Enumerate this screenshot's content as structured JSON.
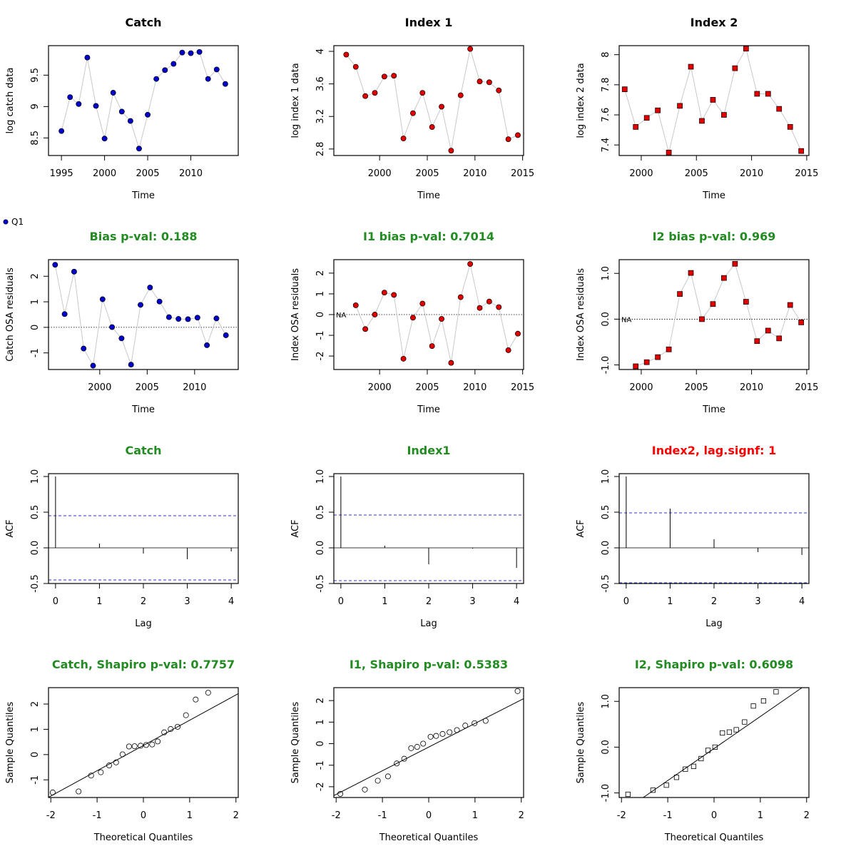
{
  "legend": {
    "label": "Q1",
    "color": "#0000cc"
  },
  "chart_data": [
    {
      "id": "p11",
      "type": "line",
      "title": "Catch",
      "title_color": "#000000",
      "xlabel": "Time",
      "ylabel": "log catch data",
      "xlim": [
        1993.5,
        2015.5
      ],
      "ylim": [
        8.22,
        9.97
      ],
      "xticks": [
        1995,
        2000,
        2005,
        2010
      ],
      "yticks": [
        8.5,
        9.0,
        9.5
      ],
      "marker": "circle",
      "marker_color": "#0000cc",
      "x": [
        1995,
        1996,
        1997,
        1998,
        1999,
        2000,
        2001,
        2002,
        2003,
        2004,
        2005,
        2006,
        2007,
        2008,
        2009,
        2010,
        2011,
        2012,
        2013,
        2014
      ],
      "y": [
        8.61,
        9.15,
        9.04,
        9.78,
        9.01,
        8.49,
        9.22,
        8.92,
        8.77,
        8.33,
        8.87,
        9.44,
        9.58,
        9.68,
        9.86,
        9.85,
        9.87,
        9.44,
        9.59,
        9.36
      ]
    },
    {
      "id": "p12",
      "type": "line",
      "title": "Index 1",
      "title_color": "#000000",
      "xlabel": "Time",
      "ylabel": "log index 1 data",
      "xlim": [
        1995.2,
        2015.1
      ],
      "ylim": [
        2.72,
        4.07
      ],
      "xticks": [
        2000,
        2005,
        2010,
        2015
      ],
      "yticks": [
        2.8,
        3.2,
        3.6,
        4.0
      ],
      "marker": "circle",
      "marker_color": "#e00000",
      "x": [
        1996.5,
        1997.5,
        1998.5,
        1999.5,
        2000.5,
        2001.5,
        2002.5,
        2003.5,
        2004.5,
        2005.5,
        2006.5,
        2007.5,
        2008.5,
        2009.5,
        2010.5,
        2011.5,
        2012.5,
        2013.5,
        2014.5
      ],
      "y": [
        3.96,
        3.81,
        3.45,
        3.49,
        3.69,
        3.7,
        2.93,
        3.24,
        3.49,
        3.07,
        3.32,
        2.78,
        3.46,
        4.03,
        3.63,
        3.62,
        3.52,
        2.92,
        2.97
      ]
    },
    {
      "id": "p13",
      "type": "line",
      "title": "Index 2",
      "title_color": "#000000",
      "xlabel": "Time",
      "ylabel": "log index 2 data",
      "xlim": [
        1998.0,
        2015.2
      ],
      "ylim": [
        7.33,
        8.06
      ],
      "xticks": [
        2000,
        2005,
        2010,
        2015
      ],
      "yticks": [
        7.4,
        7.6,
        7.8,
        8.0
      ],
      "marker": "square",
      "marker_color": "#e00000",
      "x": [
        1998.5,
        1999.5,
        2000.5,
        2001.5,
        2002.5,
        2003.5,
        2004.5,
        2005.5,
        2006.5,
        2007.5,
        2008.5,
        2009.5,
        2010.5,
        2011.5,
        2012.5,
        2013.5,
        2014.5
      ],
      "y": [
        7.77,
        7.52,
        7.58,
        7.63,
        7.35,
        7.66,
        7.92,
        7.56,
        7.7,
        7.6,
        7.91,
        8.04,
        7.74,
        7.74,
        7.64,
        7.52,
        7.36
      ]
    },
    {
      "id": "p21",
      "type": "line",
      "title": "Bias p-val: 0.188",
      "title_color": "#228b22",
      "xlabel": "Time",
      "ylabel": "Catch OSA residuals",
      "xlim": [
        1994.6,
        2014.6
      ],
      "ylim": [
        -1.65,
        2.65
      ],
      "xticks": [
        2000,
        2005,
        2010
      ],
      "yticks": [
        -1,
        0,
        1,
        2
      ],
      "hline": 0,
      "marker": "circle",
      "marker_color": "#0000cc",
      "x": [
        1995.3,
        1996.3,
        1997.3,
        1998.3,
        1999.3,
        2000.3,
        2001.3,
        2002.3,
        2003.3,
        2004.3,
        2005.3,
        2006.3,
        2007.3,
        2008.3,
        2009.3,
        2010.3,
        2011.3,
        2012.3,
        2013.3,
        2014.3
      ],
      "y": [
        2.45,
        0.52,
        2.18,
        -0.83,
        -1.5,
        1.1,
        0.01,
        -0.43,
        -1.46,
        0.88,
        1.56,
        1.01,
        0.4,
        0.33,
        0.32,
        0.38,
        -0.7,
        0.35,
        -0.31,
        null
      ]
    },
    {
      "id": "p22",
      "type": "line",
      "title": "I1 bias p-val: 0.7014",
      "title_color": "#228b22",
      "xlabel": "Time",
      "ylabel": "Index OSA residuals",
      "xlim": [
        1995.2,
        2015.1
      ],
      "ylim": [
        -2.65,
        2.65
      ],
      "xticks": [
        2000,
        2005,
        2010,
        2015
      ],
      "yticks": [
        -2,
        -1,
        0,
        1,
        2
      ],
      "hline": 0,
      "na_label": "NA",
      "marker": "circle",
      "marker_color": "#e00000",
      "x": [
        1997.5,
        1998.5,
        1999.5,
        2000.5,
        2001.5,
        2002.5,
        2003.5,
        2004.5,
        2005.5,
        2006.5,
        2007.5,
        2008.5,
        2009.5,
        2010.5,
        2011.5,
        2012.5,
        2013.5,
        2014.5
      ],
      "y": [
        0.45,
        -0.7,
        0.0,
        1.06,
        0.95,
        -2.13,
        -0.15,
        0.53,
        -1.52,
        -0.21,
        -2.33,
        0.84,
        2.44,
        0.32,
        0.63,
        0.36,
        -1.72,
        -0.92
      ]
    },
    {
      "id": "p23",
      "type": "line",
      "title": "I2 bias p-val: 0.969",
      "title_color": "#228b22",
      "xlabel": "Time",
      "ylabel": "Index OSA residuals",
      "xlim": [
        1998.0,
        2015.2
      ],
      "ylim": [
        -1.1,
        1.3
      ],
      "xticks": [
        2000,
        2005,
        2010,
        2015
      ],
      "yticks": [
        -1.0,
        0.0,
        1.0
      ],
      "ytick_labels": [
        "-1.0",
        "0.0",
        "1.0"
      ],
      "hline": 0,
      "na_label": "NA",
      "marker": "square",
      "marker_color": "#e00000",
      "x": [
        1999.5,
        2000.5,
        2001.5,
        2002.5,
        2003.5,
        2004.5,
        2005.5,
        2006.5,
        2007.5,
        2008.5,
        2009.5,
        2010.5,
        2011.5,
        2012.5,
        2013.5,
        2014.5
      ],
      "y": [
        -1.03,
        -0.94,
        -0.83,
        -0.66,
        0.55,
        1.01,
        0.0,
        0.33,
        0.9,
        1.21,
        0.38,
        -0.48,
        -0.25,
        -0.42,
        0.31,
        -0.07
      ]
    },
    {
      "id": "p31",
      "type": "bar",
      "title": "Catch",
      "title_color": "#228b22",
      "xlabel": "Lag",
      "ylabel": "ACF",
      "xlim": [
        -0.16,
        4.16
      ],
      "ylim": [
        -0.5,
        1.04
      ],
      "xticks": [
        0,
        1,
        2,
        3,
        4
      ],
      "yticks": [
        -0.5,
        0.0,
        0.5,
        1.0
      ],
      "ytick_labels": [
        "-0.5",
        "0.0",
        "0.5",
        "1.0"
      ],
      "hline": 0,
      "ci": [
        0.45,
        -0.45
      ],
      "ci_color": "#3333cc",
      "x": [
        0,
        1,
        2,
        3,
        4
      ],
      "y": [
        1.0,
        0.06,
        -0.08,
        -0.16,
        -0.05
      ]
    },
    {
      "id": "p32",
      "type": "bar",
      "title": "Index1",
      "title_color": "#228b22",
      "xlabel": "Lag",
      "ylabel": "ACF",
      "xlim": [
        -0.16,
        4.16
      ],
      "ylim": [
        -0.5,
        1.04
      ],
      "xticks": [
        0,
        1,
        2,
        3,
        4
      ],
      "yticks": [
        -0.5,
        0.0,
        0.5,
        1.0
      ],
      "ytick_labels": [
        "-0.5",
        "0.0",
        "0.5",
        "1.0"
      ],
      "hline": 0,
      "ci": [
        0.46,
        -0.46
      ],
      "ci_color": "#3333cc",
      "x": [
        0,
        1,
        2,
        3,
        4
      ],
      "y": [
        1.0,
        0.03,
        -0.23,
        -0.01,
        -0.28
      ]
    },
    {
      "id": "p33",
      "type": "bar",
      "title": "Index2, lag.signf: 1",
      "title_color": "#ff0000",
      "xlabel": "Lag",
      "ylabel": "ACF",
      "xlim": [
        -0.16,
        4.16
      ],
      "ylim": [
        -0.5,
        1.04
      ],
      "xticks": [
        0,
        1,
        2,
        3,
        4
      ],
      "yticks": [
        -0.5,
        0.0,
        0.5,
        1.0
      ],
      "ytick_labels": [
        "-0.5",
        "0.0",
        "0.5",
        "1.0"
      ],
      "hline": 0,
      "ci": [
        0.49,
        -0.49
      ],
      "ci_color": "#3333cc",
      "x": [
        0,
        1,
        2,
        3,
        4
      ],
      "y": [
        1.0,
        0.55,
        0.12,
        -0.06,
        -0.1
      ]
    },
    {
      "id": "p41",
      "type": "scatter",
      "title": "Catch, Shapiro p-val: 0.7757",
      "title_color": "#228b22",
      "xlabel": "Theoretical Quantiles",
      "ylabel": "Sample Quantiles",
      "xlim": [
        -2.05,
        2.05
      ],
      "ylim": [
        -1.7,
        2.65
      ],
      "xticks": [
        -2,
        -1,
        0,
        1,
        2
      ],
      "yticks": [
        -1,
        0,
        1,
        2
      ],
      "marker": "open-circle",
      "qqline": [
        [
          -2.05,
          -1.69
        ],
        [
          2.05,
          2.41
        ]
      ],
      "x": [
        -1.96,
        -1.4,
        -1.13,
        -0.92,
        -0.74,
        -0.59,
        -0.45,
        -0.31,
        -0.19,
        -0.06,
        0.06,
        0.19,
        0.31,
        0.45,
        0.59,
        0.74,
        0.92,
        1.13,
        1.4,
        1.96
      ],
      "y": [
        -1.5,
        -1.46,
        -0.83,
        -0.7,
        -0.43,
        -0.31,
        0.01,
        0.32,
        0.33,
        0.35,
        0.38,
        0.4,
        0.52,
        0.88,
        1.01,
        1.1,
        1.56,
        2.18,
        2.45,
        null
      ]
    },
    {
      "id": "p42",
      "type": "scatter",
      "title": "I1, Shapiro p-val: 0.5383",
      "title_color": "#228b22",
      "xlabel": "Theoretical Quantiles",
      "ylabel": "Sample Quantiles",
      "xlim": [
        -2.05,
        2.05
      ],
      "ylim": [
        -2.5,
        2.6
      ],
      "xticks": [
        -2,
        -1,
        0,
        1,
        2
      ],
      "yticks": [
        -2,
        -1,
        0,
        1,
        2
      ],
      "marker": "open-circle",
      "qqline": [
        [
          -2.05,
          -2.41
        ],
        [
          2.05,
          2.09
        ]
      ],
      "x": [
        -1.91,
        -1.38,
        -1.1,
        -0.88,
        -0.69,
        -0.53,
        -0.38,
        -0.25,
        -0.12,
        0.04,
        0.16,
        0.3,
        0.45,
        0.61,
        0.79,
        0.99,
        1.23,
        1.92
      ],
      "y": [
        -2.33,
        -2.13,
        -1.72,
        -1.52,
        -0.92,
        -0.7,
        -0.21,
        -0.15,
        0.0,
        0.32,
        0.36,
        0.45,
        0.53,
        0.63,
        0.84,
        0.95,
        1.06,
        2.44
      ]
    },
    {
      "id": "p43",
      "type": "scatter",
      "title": "I2, Shapiro p-val: 0.6098",
      "title_color": "#228b22",
      "xlabel": "Theoretical Quantiles",
      "ylabel": "Sample Quantiles",
      "xlim": [
        -2.05,
        2.05
      ],
      "ylim": [
        -1.1,
        1.3
      ],
      "xticks": [
        -2,
        -1,
        0,
        1,
        2
      ],
      "yticks": [
        -1.0,
        0.0,
        1.0
      ],
      "ytick_labels": [
        "-1.0",
        "0.0",
        "1.0"
      ],
      "marker": "open-square",
      "qqline": [
        [
          -1.53,
          -1.1
        ],
        [
          1.9,
          1.3
        ]
      ],
      "x": [
        -1.86,
        -1.32,
        -1.03,
        -0.81,
        -0.62,
        -0.44,
        -0.28,
        -0.13,
        0.02,
        0.18,
        0.33,
        0.48,
        0.66,
        0.85,
        1.07,
        1.34,
        1.86
      ],
      "y": [
        -1.03,
        -0.94,
        -0.83,
        -0.66,
        -0.48,
        -0.42,
        -0.25,
        -0.07,
        0.0,
        0.31,
        0.33,
        0.38,
        0.55,
        0.9,
        1.01,
        1.21,
        null
      ]
    }
  ]
}
